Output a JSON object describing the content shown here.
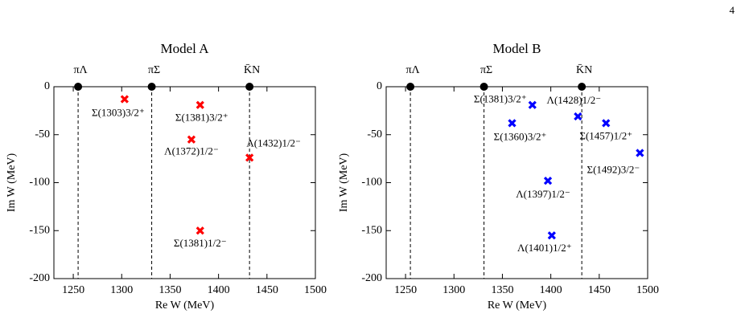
{
  "page_number": "4",
  "chart_data": [
    {
      "type": "scatter",
      "title": "Model A",
      "x_label": "Re W (MeV)",
      "y_label": "Im W (MeV)",
      "xlim": [
        1230,
        1500
      ],
      "xticks": [
        1250,
        1300,
        1350,
        1400,
        1450,
        1500
      ],
      "ylim": [
        -200,
        0
      ],
      "yticks": [
        -200,
        -150,
        -100,
        -50,
        0
      ],
      "thresholds": {
        "names": [
          "πΛ",
          "πΣ",
          "K̄N"
        ],
        "x": [
          1255,
          1331,
          1432
        ]
      },
      "series": [
        {
          "color": "#ff0000",
          "labels": [
            "Σ(1303)3/2⁺",
            "Σ(1381)3/2⁺",
            "Λ(1372)1/2⁻",
            "Λ(1432)1/2⁻",
            "Σ(1381)1/2⁻"
          ],
          "x": [
            1303,
            1381,
            1372,
            1432,
            1381
          ],
          "values": [
            -13,
            -19,
            -55,
            -74,
            -150
          ]
        }
      ]
    },
    {
      "type": "scatter",
      "title": "Model B",
      "x_label": "Re W (MeV)",
      "y_label": "Im W (MeV)",
      "xlim": [
        1230,
        1500
      ],
      "xticks": [
        1250,
        1300,
        1350,
        1400,
        1450,
        1500
      ],
      "ylim": [
        -200,
        0
      ],
      "yticks": [
        -200,
        -150,
        -100,
        -50,
        0
      ],
      "thresholds": {
        "names": [
          "πΛ",
          "πΣ",
          "K̄N"
        ],
        "x": [
          1255,
          1331,
          1432
        ]
      },
      "series": [
        {
          "color": "#0000ff",
          "labels": [
            "Σ(1381)3/2⁺",
            "Σ(1360)3/2⁺",
            "Λ(1428)1/2⁻",
            "Σ(1457)1/2⁺",
            "Σ(1492)3/2⁻",
            "Λ(1397)1/2⁻",
            "Λ(1401)1/2⁺"
          ],
          "x": [
            1381,
            1360,
            1428,
            1457,
            1492,
            1397,
            1401
          ],
          "values": [
            -19,
            -38,
            -31,
            -38,
            -69,
            -98,
            -155
          ]
        }
      ]
    }
  ]
}
